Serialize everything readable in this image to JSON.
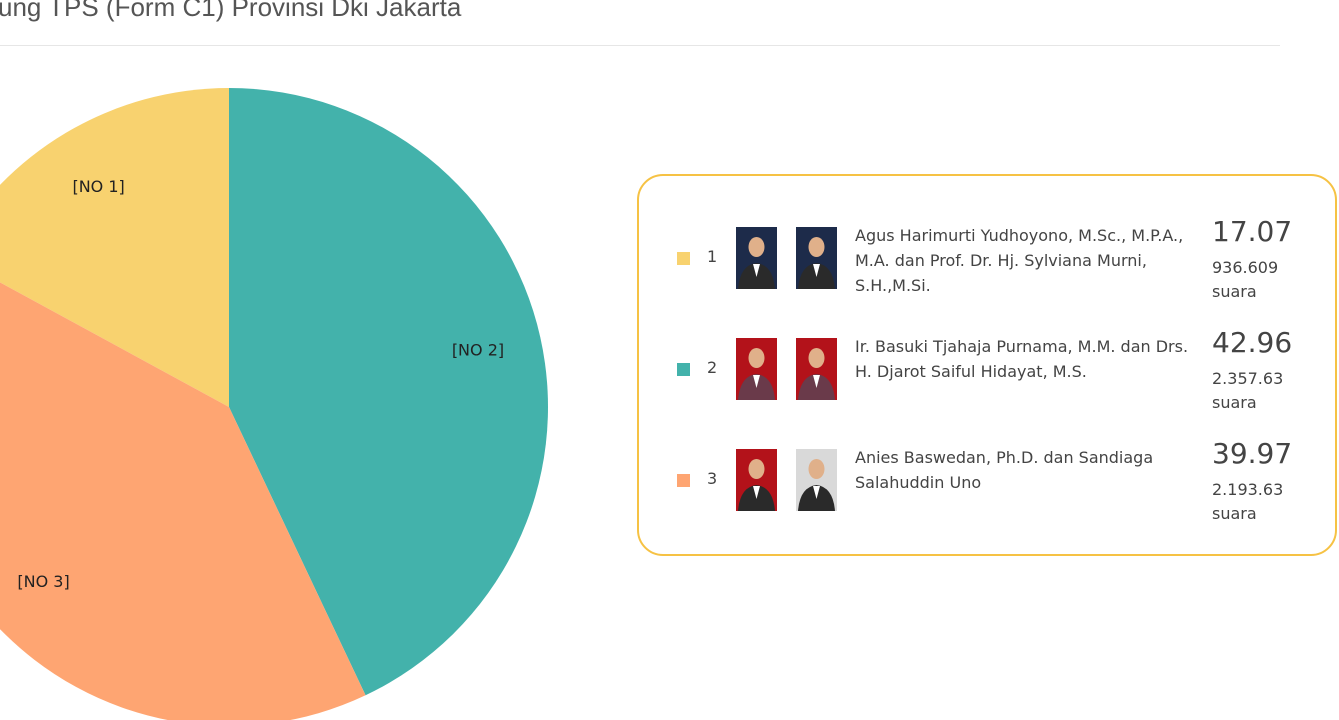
{
  "header": {
    "title": "ung TPS (Form C1) Provinsi Dki Jakarta"
  },
  "chart_data": {
    "type": "pie",
    "categories": [
      "[NO 1]",
      "[NO 2]",
      "[NO 3]"
    ],
    "values": [
      17.07,
      42.96,
      39.97
    ],
    "colors": [
      "#f8d26f",
      "#43b2ab",
      "#fea572"
    ]
  },
  "legend": {
    "vote_unit": "suara",
    "items": [
      {
        "number": "1",
        "name": "Agus Harimurti Yudhoyono, M.Sc., M.P.A., M.A. dan Prof. Dr. Hj. Sylviana Murni, S.H.,M.Si.",
        "votes": "936.609"
      },
      {
        "number": "2",
        "name": "Ir. Basuki Tjahaja Purnama, M.M. dan Drs. H. Djarot Saiful Hidayat, M.S.",
        "votes": "2.357.63"
      },
      {
        "number": "3",
        "name": "Anies Baswedan, Ph.D. dan Sandiaga Salahuddin Uno",
        "votes": "2.193.63"
      }
    ]
  }
}
